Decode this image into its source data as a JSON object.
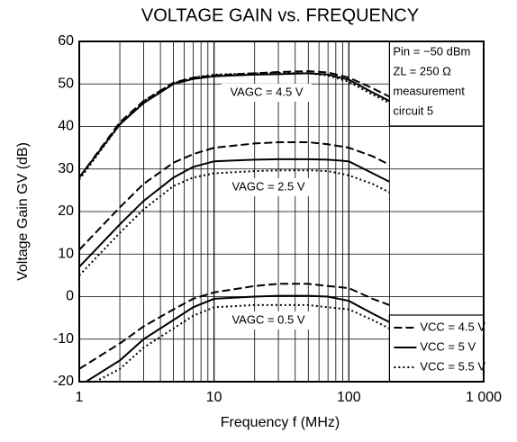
{
  "chart_data": {
    "type": "line",
    "title": "VOLTAGE GAIN vs. FREQUENCY",
    "xlabel": "Frequency  f (MHz)",
    "ylabel": "Voltage Gain  GV (dB)",
    "log_x": true,
    "grid": true,
    "xlim": [
      1,
      1000
    ],
    "xticks": [
      1,
      10,
      100,
      {
        "value": 1000,
        "label": "1 000"
      }
    ],
    "xminorticks": [
      2,
      3,
      4,
      5,
      6,
      7,
      8,
      9,
      20,
      30,
      40,
      50,
      60,
      70,
      80,
      90,
      200
    ],
    "ylim": [
      -20,
      60
    ],
    "yticks": [
      -20,
      -10,
      0,
      10,
      20,
      30,
      40,
      50,
      60
    ],
    "notes": [
      "Pin = −50 dBm",
      "ZL = 250 Ω",
      "measurement",
      "circuit 5"
    ],
    "legend": [
      {
        "name": "VCC = 4.5 V",
        "dash": "dashed"
      },
      {
        "name": "VCC = 5 V",
        "dash": "solid"
      },
      {
        "name": "VCC = 5.5 V",
        "dash": "dotted"
      }
    ],
    "color": "#000000",
    "x": [
      1,
      2,
      3,
      5,
      7,
      10,
      20,
      30,
      50,
      70,
      100,
      150,
      200
    ],
    "groups": [
      {
        "label": "VAGC = 4.5 V",
        "curves": [
          [
            28,
            41,
            46,
            50.3,
            51.5,
            52,
            52.5,
            52.8,
            53,
            52.7,
            51.5,
            49,
            47
          ],
          [
            28,
            40.5,
            45.5,
            50,
            51.2,
            51.8,
            52.2,
            52.3,
            52.5,
            52.2,
            51,
            48,
            46
          ],
          [
            27.5,
            40.5,
            46,
            50.2,
            51.5,
            52.2,
            52.5,
            52.6,
            52.5,
            52,
            50.5,
            47.5,
            45.5
          ]
        ]
      },
      {
        "label": "VAGC = 2.5 V",
        "curves": [
          [
            11,
            21,
            26.5,
            31.5,
            33.5,
            35,
            36,
            36.3,
            36.3,
            35.8,
            35,
            33,
            31
          ],
          [
            7,
            17,
            22.5,
            28,
            30.5,
            31.8,
            32.2,
            32.3,
            32.3,
            32.2,
            31.8,
            29,
            27
          ],
          [
            5,
            15,
            20.5,
            26,
            28,
            29,
            29.5,
            29.7,
            29.7,
            29.5,
            28.5,
            26.5,
            24.5
          ]
        ]
      },
      {
        "label": "VAGC = 0.5 V",
        "curves": [
          [
            -17,
            -11,
            -7,
            -3,
            -0.5,
            1,
            2.5,
            3,
            3,
            2.5,
            2,
            -0.5,
            -2
          ],
          [
            -21,
            -15,
            -10,
            -5.5,
            -2.5,
            -0.5,
            0,
            0.2,
            0.2,
            0,
            -1,
            -4,
            -6
          ],
          [
            -22,
            -17,
            -12,
            -7.5,
            -4.5,
            -2.5,
            -2,
            -2,
            -2,
            -2.5,
            -3,
            -5.5,
            -7.5
          ]
        ]
      }
    ]
  }
}
